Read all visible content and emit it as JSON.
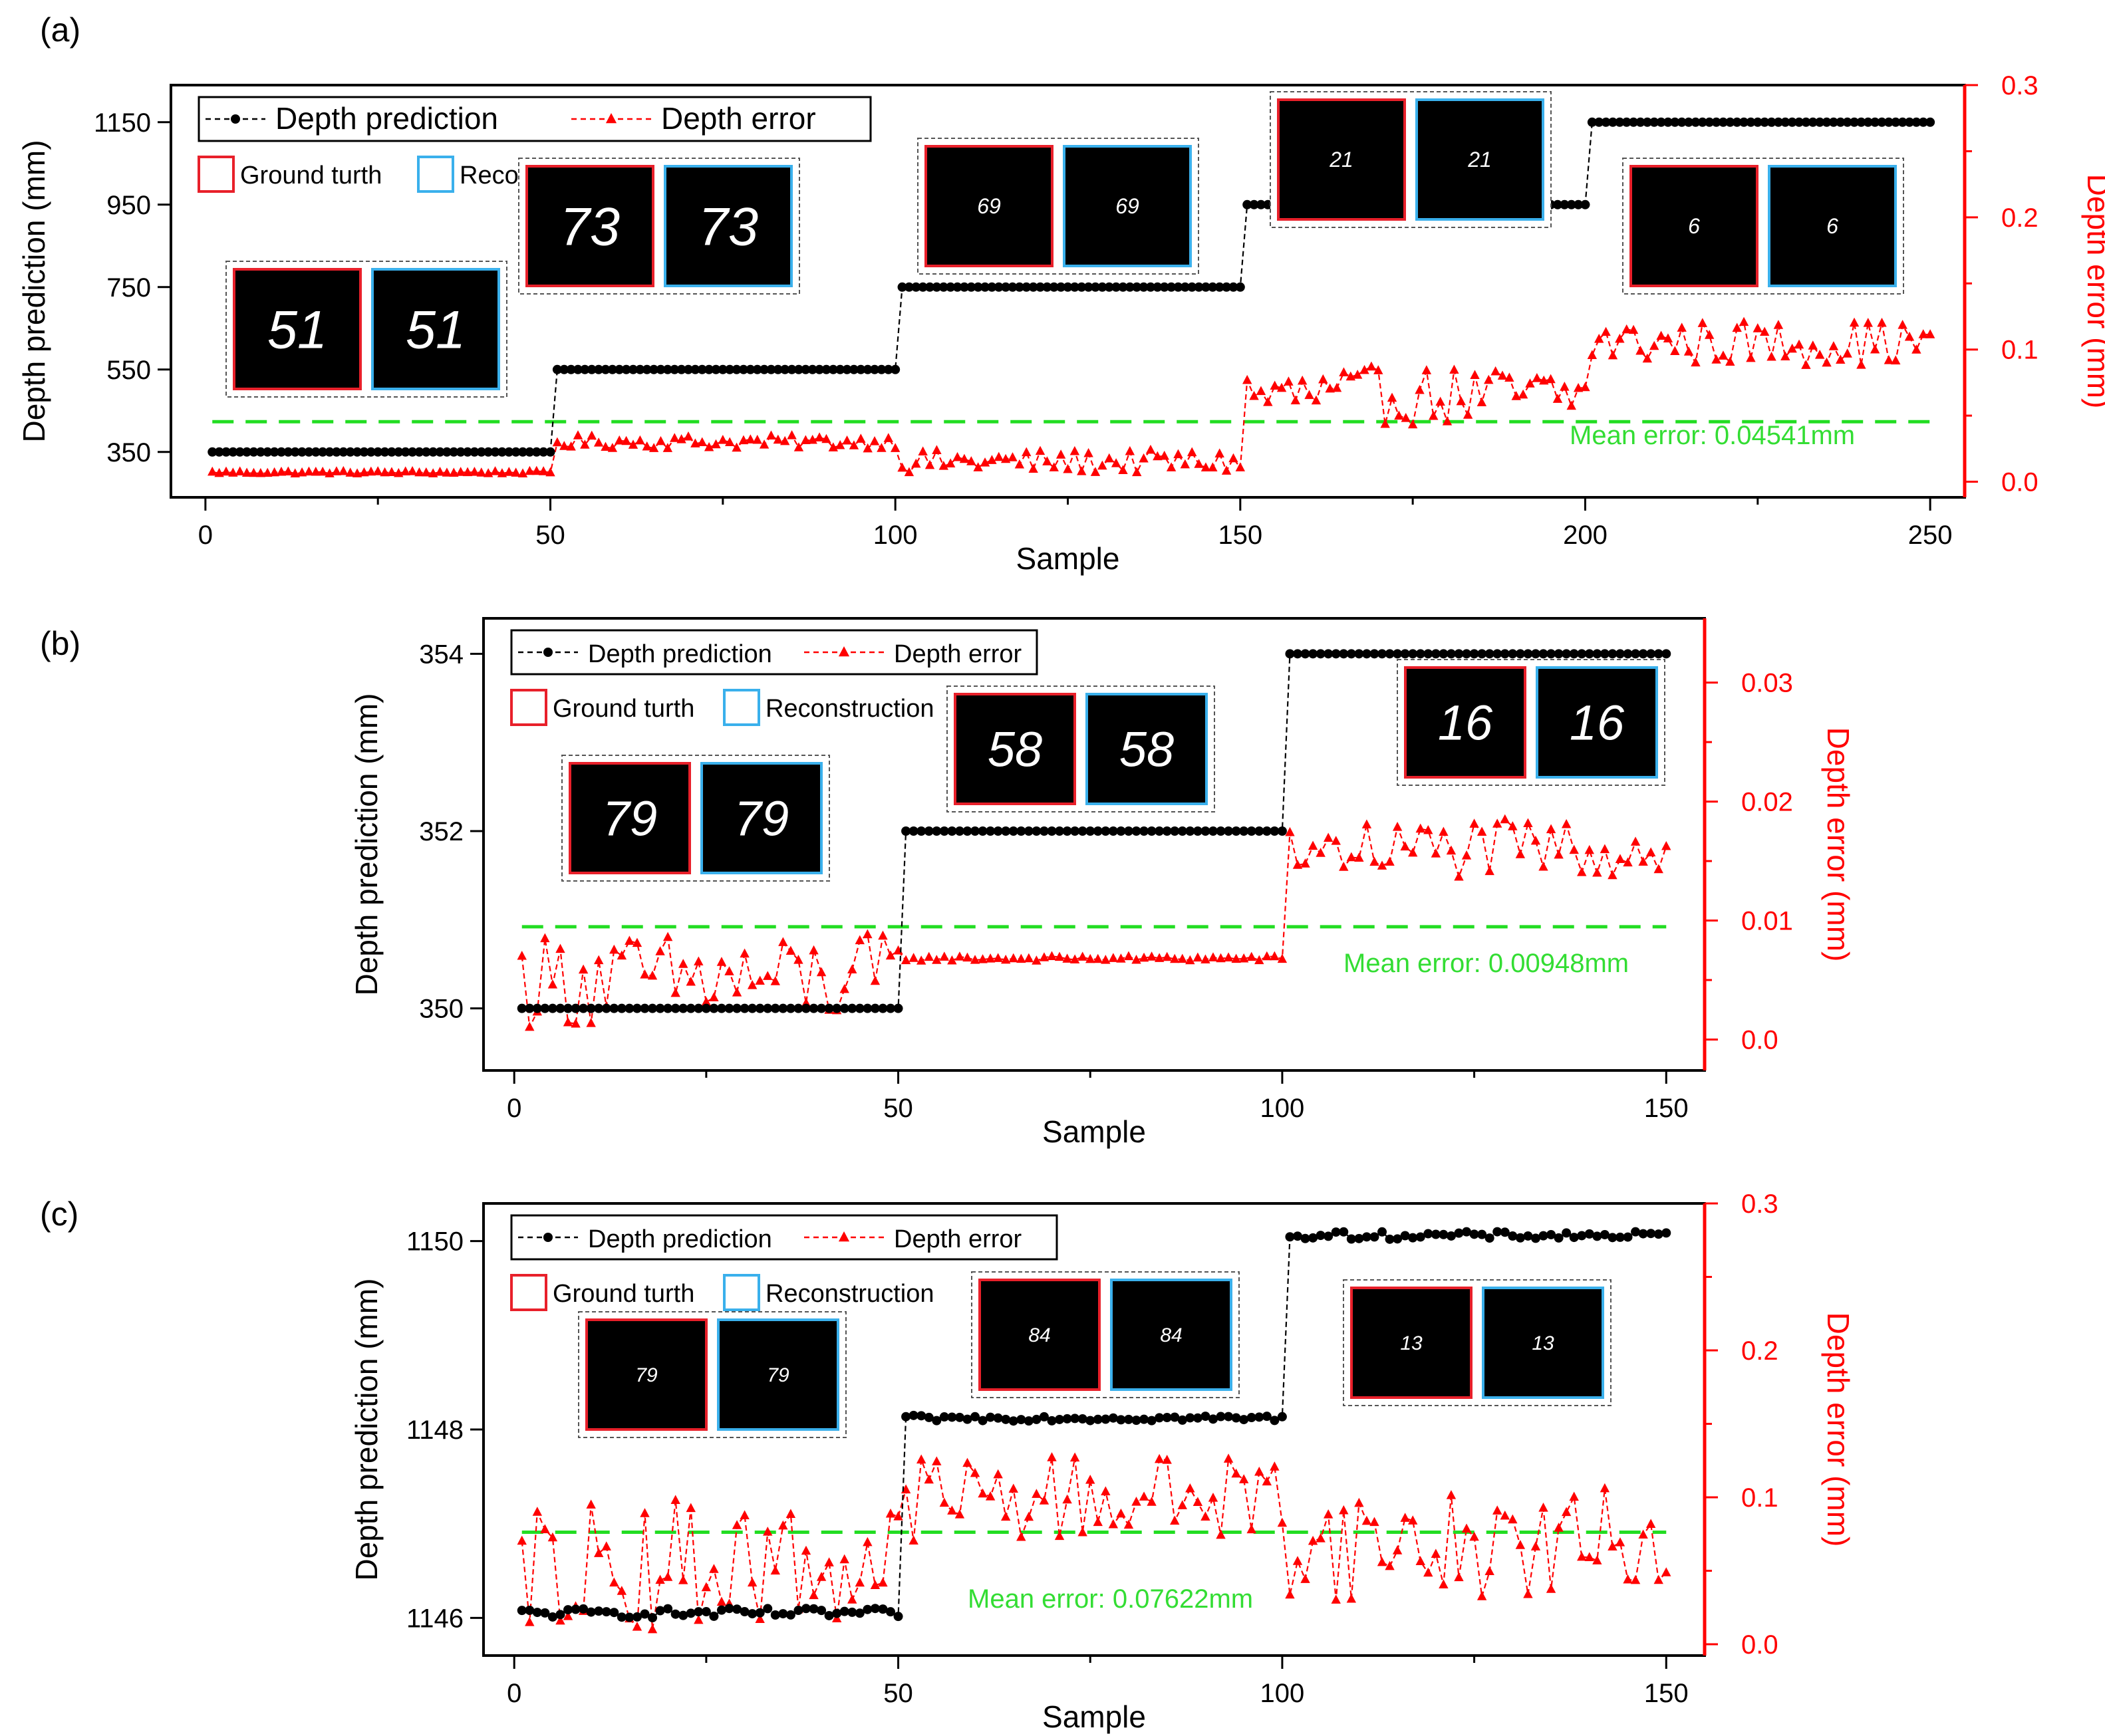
{
  "colors": {
    "prediction": "#000000",
    "error": "#ff0000",
    "mean_line": "#22dd22",
    "ground_truth_box": "#e8202a",
    "reconstruction_box": "#3ab0ec"
  },
  "legend": {
    "prediction": "Depth prediction",
    "error": "Depth error",
    "ground_truth": "Ground turth",
    "reconstruction": "Reconstruction"
  },
  "chart_data": [
    {
      "type": "line",
      "panel_label": "(a)",
      "xlabel": "Sample",
      "ylabel_left": "Depth prediction (mm)",
      "ylabel_right": "Depth error (mm)",
      "xlim": [
        -5,
        255
      ],
      "xticks": [
        0,
        50,
        100,
        150,
        200,
        250
      ],
      "ylim_left": [
        240,
        1240
      ],
      "yticks_left": [
        350,
        550,
        750,
        950,
        1150
      ],
      "ylim_right": [
        -0.0118,
        0.3
      ],
      "yticks_right": [
        0.0,
        0.1,
        0.2,
        0.3
      ],
      "mean_error": 0.04541,
      "mean_text": "Mean error: 0.04541mm",
      "digit_pairs": [
        {
          "digits": "51",
          "at_sample": 50
        },
        {
          "digits": "73",
          "at_sample": 100
        },
        {
          "digits": "69",
          "at_sample": 150
        },
        {
          "digits": "21",
          "at_sample": 200
        },
        {
          "digits": "6",
          "at_sample": 250
        }
      ],
      "n": 250,
      "series": [
        {
          "name": "Depth prediction",
          "segments": [
            {
              "start": 1,
              "end": 50,
              "level": 350,
              "jitter": 0
            },
            {
              "start": 51,
              "end": 100,
              "level": 550,
              "jitter": 0
            },
            {
              "start": 101,
              "end": 150,
              "level": 750,
              "jitter": 0
            },
            {
              "start": 151,
              "end": 200,
              "level": 950,
              "jitter": 0
            },
            {
              "start": 201,
              "end": 250,
              "level": 1150,
              "jitter": 0
            }
          ]
        },
        {
          "name": "Depth error",
          "segments": [
            {
              "start": 1,
              "end": 50,
              "base": 0.007,
              "spread": 0.001
            },
            {
              "start": 51,
              "end": 100,
              "base": 0.03,
              "spread": 0.005
            },
            {
              "start": 101,
              "end": 150,
              "base": 0.015,
              "spread": 0.009
            },
            {
              "start": 151,
              "end": 200,
              "base": 0.065,
              "spread": 0.022
            },
            {
              "start": 201,
              "end": 250,
              "base": 0.105,
              "spread": 0.017
            }
          ]
        }
      ]
    },
    {
      "type": "line",
      "panel_label": "(b)",
      "xlabel": "Sample",
      "ylabel_left": "Depth prediction (mm)",
      "ylabel_right": "Depth error (mm)",
      "xlim": [
        -4,
        155
      ],
      "xticks": [
        0,
        50,
        100,
        150
      ],
      "ylim_left": [
        349.3,
        354.4
      ],
      "yticks_left": [
        350,
        352,
        354
      ],
      "ylim_right": [
        -0.0026,
        0.0354
      ],
      "yticks_right": [
        0.0,
        0.01,
        0.02,
        0.03
      ],
      "mean_error": 0.00948,
      "mean_text": "Mean error: 0.00948mm",
      "digit_pairs": [
        {
          "digits": "79",
          "at_sample": 50
        },
        {
          "digits": "58",
          "at_sample": 100
        },
        {
          "digits": "16",
          "at_sample": 150
        }
      ],
      "n": 150,
      "series": [
        {
          "name": "Depth prediction",
          "segments": [
            {
              "start": 1,
              "end": 50,
              "level": 350,
              "jitter": 0
            },
            {
              "start": 51,
              "end": 100,
              "level": 352,
              "jitter": 0
            },
            {
              "start": 101,
              "end": 150,
              "level": 354,
              "jitter": 0
            }
          ]
        },
        {
          "name": "Depth error",
          "segments": [
            {
              "start": 1,
              "end": 50,
              "base": 0.005,
              "spread": 0.004
            },
            {
              "start": 51,
              "end": 100,
              "base": 0.0068,
              "spread": 0.0002
            },
            {
              "start": 101,
              "end": 150,
              "base": 0.016,
              "spread": 0.0025
            }
          ]
        }
      ]
    },
    {
      "type": "line",
      "panel_label": "(c)",
      "xlabel": "Sample",
      "ylabel_left": "Depth prediction (mm)",
      "ylabel_right": "Depth error (mm)",
      "xlim": [
        -4,
        155
      ],
      "xticks": [
        0,
        50,
        100,
        150
      ],
      "ylim_left": [
        1145.6,
        1150.4
      ],
      "yticks_left": [
        1146,
        1148,
        1150
      ],
      "ylim_right": [
        -0.0077,
        0.3
      ],
      "yticks_right": [
        0.0,
        0.1,
        0.2,
        0.3
      ],
      "mean_error": 0.07622,
      "mean_text": "Mean error: 0.07622mm",
      "digit_pairs": [
        {
          "digits": "79",
          "at_sample": 50
        },
        {
          "digits": "84",
          "at_sample": 100
        },
        {
          "digits": "13",
          "at_sample": 150
        }
      ],
      "n": 150,
      "series": [
        {
          "name": "Depth prediction",
          "segments": [
            {
              "start": 1,
              "end": 50,
              "level": 1146.05,
              "jitter": 0.05
            },
            {
              "start": 51,
              "end": 100,
              "level": 1148.12,
              "jitter": 0.03
            },
            {
              "start": 101,
              "end": 150,
              "level": 1150.06,
              "jitter": 0.04
            }
          ]
        },
        {
          "name": "Depth error",
          "segments": [
            {
              "start": 1,
              "end": 50,
              "base": 0.055,
              "spread": 0.045
            },
            {
              "start": 51,
              "end": 100,
              "base": 0.1,
              "spread": 0.03
            },
            {
              "start": 101,
              "end": 150,
              "base": 0.068,
              "spread": 0.038
            }
          ]
        }
      ]
    }
  ]
}
